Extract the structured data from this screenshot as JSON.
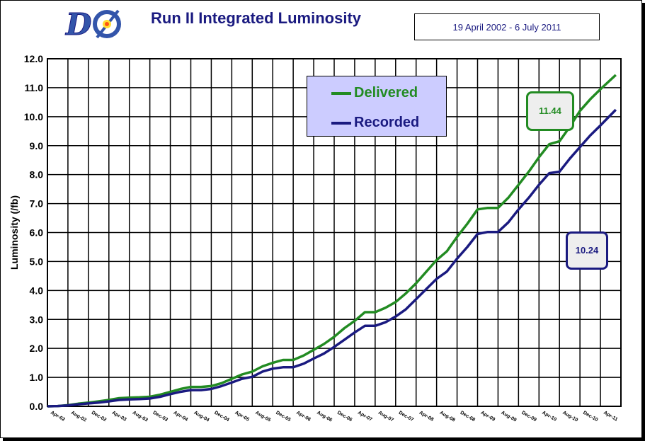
{
  "header": {
    "logo_text": "DØ",
    "title": "Run II Integrated  Luminosity",
    "date_range": "19 April 2002 - 6 July 2011"
  },
  "legend": {
    "delivered_label": "Delivered",
    "recorded_label": "Recorded"
  },
  "callouts": {
    "delivered_value": "11.44",
    "recorded_value": "10.24"
  },
  "colors": {
    "delivered": "#228b22",
    "recorded": "#1a1a80",
    "title": "#1a1a80",
    "legend_bg": "#ccccff"
  },
  "chart_data": {
    "type": "line",
    "ylabel": "Luminosity (/fb)",
    "xlabel": "",
    "ylim": [
      0,
      12
    ],
    "yticks": [
      "0.0",
      "1.0",
      "2.0",
      "3.0",
      "4.0",
      "5.0",
      "6.0",
      "7.0",
      "8.0",
      "9.0",
      "10.0",
      "11.0",
      "12.0"
    ],
    "xtick_labels": [
      "Apr-02",
      "Aug-02",
      "Dec-02",
      "Apr-03",
      "Aug-03",
      "Dec-03",
      "Apr-04",
      "Aug-04",
      "Dec-04",
      "Apr-05",
      "Aug-05",
      "Dec-05",
      "Apr-06",
      "Aug-06",
      "Dec-06",
      "Apr-07",
      "Aug-07",
      "Dec-07",
      "Apr-08",
      "Aug-08",
      "Dec-08",
      "Apr-09",
      "Aug-09",
      "Dec-09",
      "Apr-10",
      "Aug-10",
      "Dec-10",
      "Apr-11"
    ],
    "grid": true,
    "legend_position": "top-center",
    "series": [
      {
        "name": "Delivered",
        "x": [
          "Apr-02",
          "Jun-02",
          "Aug-02",
          "Oct-02",
          "Dec-02",
          "Feb-03",
          "Apr-03",
          "Jun-03",
          "Aug-03",
          "Oct-03",
          "Dec-03",
          "Feb-04",
          "Apr-04",
          "Jun-04",
          "Aug-04",
          "Oct-04",
          "Dec-04",
          "Feb-05",
          "Apr-05",
          "Jun-05",
          "Aug-05",
          "Oct-05",
          "Dec-05",
          "Feb-06",
          "Apr-06",
          "Jun-06",
          "Aug-06",
          "Oct-06",
          "Dec-06",
          "Feb-07",
          "Apr-07",
          "Jun-07",
          "Aug-07",
          "Oct-07",
          "Dec-07",
          "Feb-08",
          "Apr-08",
          "Jun-08",
          "Aug-08",
          "Oct-08",
          "Dec-08",
          "Feb-09",
          "Apr-09",
          "Jun-09",
          "Aug-09",
          "Oct-09",
          "Dec-09",
          "Feb-10",
          "Apr-10",
          "Jun-10",
          "Aug-10",
          "Oct-10",
          "Dec-10",
          "Feb-11",
          "Apr-11",
          "Jul-11"
        ],
        "values": [
          0.0,
          0.01,
          0.04,
          0.09,
          0.13,
          0.17,
          0.22,
          0.28,
          0.3,
          0.31,
          0.33,
          0.4,
          0.5,
          0.6,
          0.67,
          0.67,
          0.7,
          0.8,
          0.95,
          1.1,
          1.2,
          1.38,
          1.5,
          1.6,
          1.6,
          1.75,
          1.95,
          2.15,
          2.4,
          2.7,
          2.95,
          3.25,
          3.25,
          3.4,
          3.6,
          3.9,
          4.25,
          4.65,
          5.05,
          5.35,
          5.85,
          6.3,
          6.8,
          6.85,
          6.85,
          7.2,
          7.65,
          8.1,
          8.6,
          9.05,
          9.15,
          9.65,
          10.2,
          10.6,
          10.95,
          11.44
        ]
      },
      {
        "name": "Recorded",
        "x": [
          "Apr-02",
          "Jun-02",
          "Aug-02",
          "Oct-02",
          "Dec-02",
          "Feb-03",
          "Apr-03",
          "Jun-03",
          "Aug-03",
          "Oct-03",
          "Dec-03",
          "Feb-04",
          "Apr-04",
          "Jun-04",
          "Aug-04",
          "Oct-04",
          "Dec-04",
          "Feb-05",
          "Apr-05",
          "Jun-05",
          "Aug-05",
          "Oct-05",
          "Dec-05",
          "Feb-06",
          "Apr-06",
          "Jun-06",
          "Aug-06",
          "Oct-06",
          "Dec-06",
          "Feb-07",
          "Apr-07",
          "Jun-07",
          "Aug-07",
          "Oct-07",
          "Dec-07",
          "Feb-08",
          "Apr-08",
          "Jun-08",
          "Aug-08",
          "Oct-08",
          "Dec-08",
          "Feb-09",
          "Apr-09",
          "Jun-09",
          "Aug-09",
          "Oct-09",
          "Dec-09",
          "Feb-10",
          "Apr-10",
          "Jun-10",
          "Aug-10",
          "Oct-10",
          "Dec-10",
          "Feb-11",
          "Apr-11",
          "Jul-11"
        ],
        "values": [
          0.0,
          0.01,
          0.03,
          0.07,
          0.1,
          0.13,
          0.17,
          0.22,
          0.24,
          0.25,
          0.27,
          0.33,
          0.42,
          0.5,
          0.56,
          0.56,
          0.6,
          0.7,
          0.82,
          0.95,
          1.02,
          1.2,
          1.3,
          1.35,
          1.35,
          1.47,
          1.65,
          1.82,
          2.05,
          2.3,
          2.55,
          2.78,
          2.78,
          2.9,
          3.1,
          3.35,
          3.7,
          4.05,
          4.4,
          4.65,
          5.1,
          5.5,
          5.95,
          6.02,
          6.02,
          6.35,
          6.8,
          7.2,
          7.65,
          8.05,
          8.1,
          8.55,
          8.95,
          9.35,
          9.7,
          10.24
        ]
      }
    ]
  }
}
